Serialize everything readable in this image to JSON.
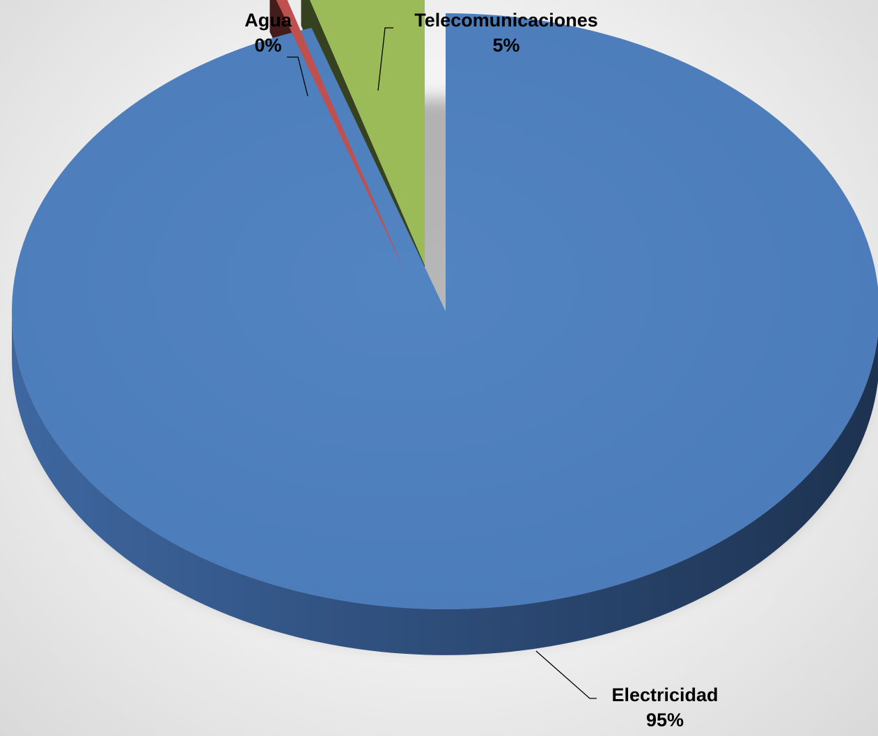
{
  "chart_data": {
    "type": "pie",
    "style": "3d-exploded",
    "legend": "none",
    "slices": [
      {
        "name": "Electricidad",
        "percent_label": "95%",
        "value": 95,
        "color": "#4F81BD"
      },
      {
        "name": "Agua",
        "percent_label": "0%",
        "value": 0.4,
        "color": "#C0504D"
      },
      {
        "name": "Telecomunicaciones",
        "percent_label": "5%",
        "value": 4.6,
        "color": "#9BBB59"
      }
    ]
  }
}
